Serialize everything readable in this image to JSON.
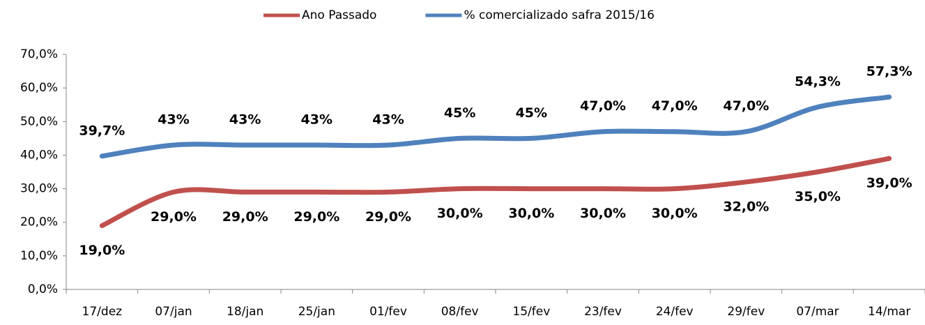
{
  "chart_data": {
    "type": "line",
    "categories": [
      "17/dez",
      "07/jan",
      "18/jan",
      "25/jan",
      "01/fev",
      "08/fev",
      "15/fev",
      "23/fev",
      "24/fev",
      "29/fev",
      "07/mar",
      "14/mar"
    ],
    "series": [
      {
        "name": "Ano Passado",
        "color": "#c0504d",
        "values": [
          19,
          29,
          29,
          29,
          29,
          30,
          30,
          30,
          30,
          32,
          35,
          39
        ],
        "value_labels": [
          "19,0%",
          "29,0%",
          "29,0%",
          "29,0%",
          "29,0%",
          "30,0%",
          "30,0%",
          "30,0%",
          "30,0%",
          "32,0%",
          "35,0%",
          "39,0%"
        ]
      },
      {
        "name": "% comercializado safra 2015/16",
        "color": "#4f81bd",
        "values": [
          39.7,
          43,
          43,
          43,
          43,
          45,
          45,
          47,
          47,
          47,
          54.3,
          57.3
        ],
        "value_labels": [
          "39,7%",
          "43%",
          "43%",
          "43%",
          "43%",
          "45%",
          "45%",
          "47,0%",
          "47,0%",
          "47,0%",
          "54,3%",
          "57,3%"
        ]
      }
    ],
    "ylim": [
      0,
      70
    ],
    "yticks": [
      {
        "value": 0,
        "label": "0,0%"
      },
      {
        "value": 10,
        "label": "10,0%"
      },
      {
        "value": 20,
        "label": "20,0%"
      },
      {
        "value": 30,
        "label": "30,0%"
      },
      {
        "value": 40,
        "label": "40,0%"
      },
      {
        "value": 50,
        "label": "50,0%"
      },
      {
        "value": 60,
        "label": "60,0%"
      },
      {
        "value": 70,
        "label": "70,0%"
      }
    ],
    "grid": false,
    "smooth": true,
    "legend": "top"
  }
}
